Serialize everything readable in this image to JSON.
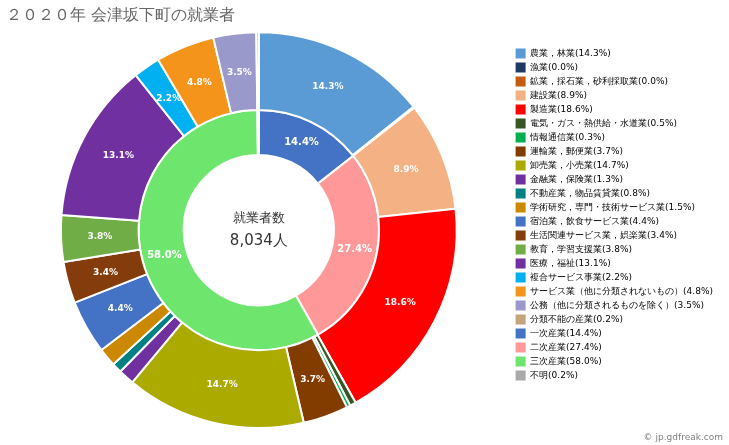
{
  "chart_data": {
    "type": "doughnut",
    "title": "２０２０年 会津坂下町の就業者",
    "center_text": [
      "就業者数",
      "8,034人"
    ],
    "footnote": "© jp.gdfreak.com",
    "legend": "right",
    "data_labels": true,
    "rings": [
      {
        "categories": [
          "農業，林業(14.3%)",
          "漁業(0.0%)",
          "鉱業，採石業，砂利採取業(0.0%)",
          "建設業(8.9%)",
          "製造業(18.6%)",
          "電気・ガス・熱供給・水道業(0.5%)",
          "情報通信業(0.3%)",
          "運輸業，郵便業(3.7%)",
          "卸売業，小売業(14.7%)",
          "金融業，保険業(1.3%)",
          "不動産業，物品賃貸業(0.8%)",
          "学術研究，専門・技術サービス業(1.5%)",
          "宿泊業，飲食サービス業(4.4%)",
          "生活関連サービス業，娯楽業(3.4%)",
          "教育，学習支援業(3.8%)",
          "医療，福祉(13.1%)",
          "複合サービス事業(2.2%)",
          "サービス業（他に分類されないもの）(4.8%)",
          "公務（他に分類されるものを除く）(3.5%)",
          "分類不能の産業(0.2%)"
        ],
        "values": [
          14.3,
          0.05,
          0.05,
          8.9,
          18.6,
          0.5,
          0.3,
          3.7,
          14.7,
          1.3,
          0.8,
          1.5,
          4.4,
          3.4,
          3.8,
          13.1,
          2.2,
          4.8,
          3.5,
          0.2
        ],
        "value_labels": [
          "14.3%",
          null,
          null,
          "8.9%",
          "18.6%",
          null,
          null,
          "3.7%",
          "14.7%",
          null,
          null,
          null,
          "4.4%",
          "3.4%",
          "3.8%",
          "13.1%",
          "2.2%",
          "4.8%",
          "3.5%",
          null
        ],
        "colors": [
          "#5B9BD5",
          "#203864",
          "#C55A11",
          "#F4B183",
          "#FF0000",
          "#375623",
          "#00B050",
          "#833C00",
          "#AAAA00",
          "#7030A0",
          "#008080",
          "#CC8800",
          "#4472C4",
          "#843C0C",
          "#70AD47",
          "#7030A0",
          "#00B0F0",
          "#F4941B",
          "#9999CC",
          "#C4A47C"
        ]
      },
      {
        "categories": [
          "一次産業(14.4%)",
          "二次産業(27.4%)",
          "三次産業(58.0%)",
          "不明(0.2%)"
        ],
        "values": [
          14.4,
          27.4,
          58.0,
          0.2
        ],
        "value_labels": [
          "14.4%",
          "27.4%",
          "58.0%",
          null
        ],
        "colors": [
          "#4472C4",
          "#FF9999",
          "#6EE66E",
          "#AAAAAA"
        ]
      }
    ]
  }
}
